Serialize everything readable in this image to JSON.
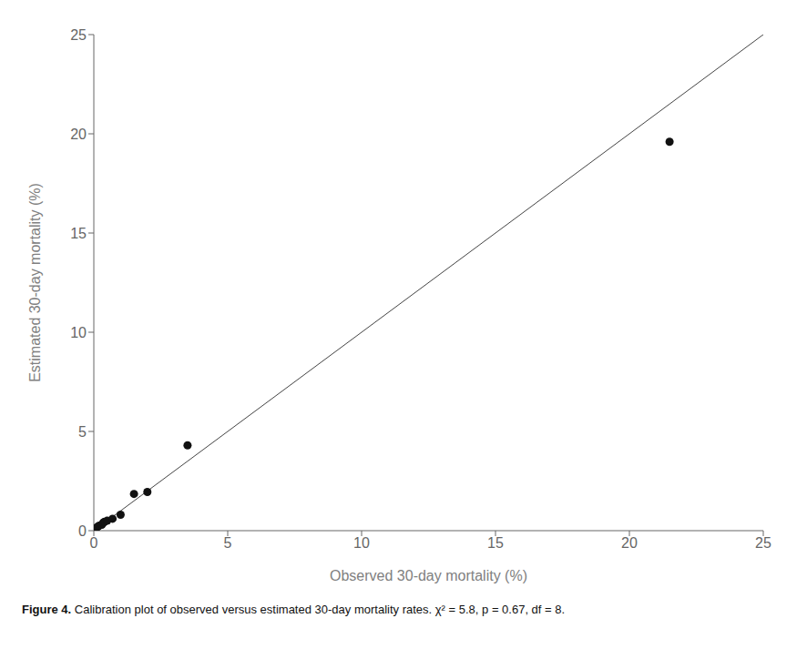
{
  "chart_data": {
    "type": "scatter",
    "xlabel": "Observed 30-day mortality (%)",
    "ylabel": "Estimated 30-day mortality (%)",
    "annotations": [
      "Figure 4.",
      "Calibration plot of observed versus estimated 30-day mortality rates. χ² = 5.8, p = 0.67, df = 8."
    ],
    "series": [
      {
        "type": "line",
        "color": "#444444",
        "x": [
          0,
          25
        ],
        "values": [
          0,
          25
        ]
      },
      {
        "type": "scatter",
        "color": "#111111",
        "x": [
          0.05,
          0.1,
          0.15,
          0.2,
          0.3,
          0.35,
          0.4,
          0.5,
          0.7,
          1.0,
          1.5,
          2.0,
          3.5,
          21.5
        ],
        "values": [
          0.05,
          0.15,
          0.2,
          0.25,
          0.3,
          0.4,
          0.45,
          0.5,
          0.6,
          0.8,
          1.85,
          1.95,
          4.3,
          19.6
        ]
      }
    ],
    "xlim": [
      0,
      25
    ],
    "ylim": [
      0,
      25
    ],
    "xticks": [
      0,
      5,
      10,
      15,
      20,
      25
    ],
    "yticks": [
      0,
      5,
      10,
      15,
      20,
      25
    ],
    "grid": false
  }
}
